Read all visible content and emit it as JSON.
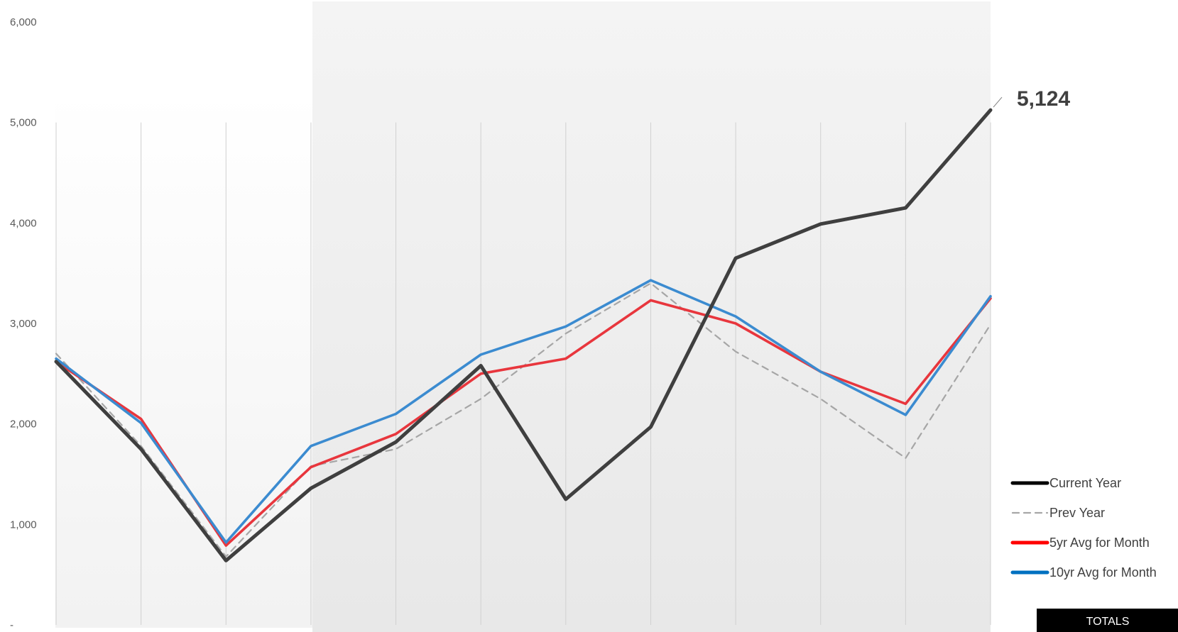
{
  "chart_data": {
    "type": "line",
    "x": [
      1,
      2,
      3,
      4,
      5,
      6,
      7,
      8,
      9,
      10,
      11,
      12
    ],
    "ylim": [
      0,
      6000
    ],
    "yticks": [
      {
        "value": 0,
        "label": "-"
      },
      {
        "value": 1000,
        "label": "1,000"
      },
      {
        "value": 2000,
        "label": "2,000"
      },
      {
        "value": 3000,
        "label": "3,000"
      },
      {
        "value": 4000,
        "label": "4,000"
      },
      {
        "value": 5000,
        "label": "5,000"
      },
      {
        "value": 6000,
        "label": "6,000"
      }
    ],
    "grid": "vertical",
    "legend_position": "bottom-right",
    "series": [
      {
        "name": "Current Year",
        "color": "#3f3f3f",
        "dash": "solid",
        "values": [
          2620,
          1750,
          640,
          1360,
          1820,
          2580,
          1250,
          1970,
          3650,
          3990,
          4150,
          5124
        ]
      },
      {
        "name": "Prev Year",
        "color": "#a6a6a6",
        "dash": "dashed",
        "values": [
          2700,
          1780,
          680,
          1580,
          1750,
          2250,
          2900,
          3400,
          2720,
          2250,
          1660,
          2990
        ]
      },
      {
        "name": "5yr Avg for Month",
        "color": "#e8363d",
        "dash": "solid",
        "values": [
          2620,
          2050,
          790,
          1570,
          1900,
          2500,
          2650,
          3230,
          3000,
          2520,
          2200,
          3250
        ]
      },
      {
        "name": "10yr Avg for Month",
        "color": "#3b8bd0",
        "dash": "solid",
        "values": [
          2650,
          2010,
          820,
          1780,
          2100,
          2690,
          2970,
          3430,
          3070,
          2520,
          2090,
          3270
        ]
      }
    ],
    "legend_line_colors": {
      "Current Year": "#000000",
      "Prev Year": "#a6a6a6",
      "5yr Avg for Month": "#ff0000",
      "10yr Avg for Month": "#0070c0"
    },
    "callout": {
      "label": "5,124",
      "series": "Current Year",
      "index": 11
    },
    "totals_label": "TOTALS"
  }
}
